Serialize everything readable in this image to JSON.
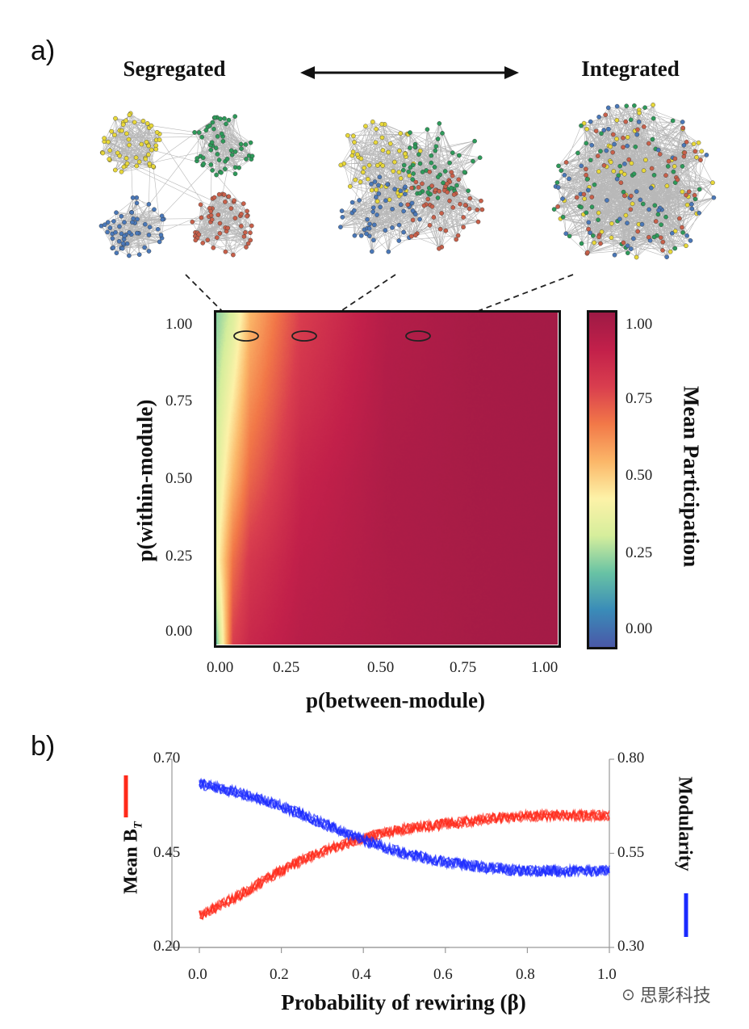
{
  "panel_a": {
    "label": "a)",
    "left_title": "Segregated",
    "right_title": "Integrated",
    "module_colors": [
      "#e8d83a",
      "#2e9a5a",
      "#4a78b8",
      "#c8604a"
    ],
    "network_states": [
      "segregated",
      "intermediate",
      "integrated"
    ]
  },
  "panel_b": {
    "label": "b)"
  },
  "watermark": "思影科技",
  "chart_data": [
    {
      "type": "heatmap",
      "xlabel": "p(between-module)",
      "ylabel": "p(within-module)",
      "x_ticks": [
        "0.00",
        "0.25",
        "0.50",
        "0.75",
        "1.00"
      ],
      "y_ticks": [
        "1.00",
        "0.75",
        "0.50",
        "0.25",
        "0.00"
      ],
      "xlim": [
        0,
        1
      ],
      "ylim": [
        0,
        1
      ],
      "colorbar": {
        "label": "Mean Participation",
        "ticks": [
          "1.00",
          "0.75",
          "0.50",
          "0.25",
          "0.00"
        ],
        "range": [
          0,
          1
        ],
        "colormap": [
          "#4a58a8",
          "#3a8cb8",
          "#69c3a4",
          "#d6ee9c",
          "#fdf2a8",
          "#fbb668",
          "#f27848",
          "#d93e4e",
          "#c2204a",
          "#9e1a45"
        ]
      },
      "grid_x": [
        0,
        0.05,
        0.1,
        0.25,
        0.5,
        0.75,
        1.0
      ],
      "grid_y": [
        1.0,
        0.75,
        0.5,
        0.25,
        0.0
      ],
      "values": [
        [
          0.25,
          0.35,
          0.55,
          0.78,
          0.93,
          0.97,
          0.98
        ],
        [
          0.3,
          0.45,
          0.62,
          0.82,
          0.94,
          0.97,
          0.98
        ],
        [
          0.35,
          0.55,
          0.7,
          0.87,
          0.95,
          0.97,
          0.98
        ],
        [
          0.4,
          0.68,
          0.8,
          0.9,
          0.95,
          0.97,
          0.98
        ],
        [
          0.2,
          0.78,
          0.86,
          0.92,
          0.95,
          0.97,
          0.98
        ]
      ],
      "highlighted_points": [
        {
          "x": 0.05,
          "y": 0.95,
          "links_to": "segregated"
        },
        {
          "x": 0.22,
          "y": 0.95,
          "links_to": "intermediate"
        },
        {
          "x": 0.57,
          "y": 0.95,
          "links_to": "integrated"
        }
      ]
    },
    {
      "type": "line",
      "xlabel": "Probability of rewiring (β)",
      "ylabel_left": "Mean B",
      "ylabel_left_subscript": "T",
      "ylabel_right": "Modularity",
      "xlim": [
        0,
        1
      ],
      "ylim_left": [
        0.2,
        0.7
      ],
      "ylim_right": [
        0.3,
        0.8
      ],
      "x_ticks": [
        "0.0",
        "0.2",
        "0.4",
        "0.6",
        "0.8",
        "1.0"
      ],
      "y_ticks_left": [
        "0.70",
        "0.45",
        "0.20"
      ],
      "y_ticks_right": [
        "0.80",
        "0.55",
        "0.30"
      ],
      "x": [
        0.0,
        0.1,
        0.2,
        0.3,
        0.4,
        0.5,
        0.6,
        0.7,
        0.8,
        0.9,
        1.0
      ],
      "series": [
        {
          "axis": "left",
          "color": "#ff2a1a",
          "values": [
            0.284,
            0.34,
            0.405,
            0.455,
            0.49,
            0.515,
            0.528,
            0.54,
            0.55,
            0.55,
            0.55
          ]
        },
        {
          "axis": "right",
          "color": "#1a2aff",
          "values": [
            0.735,
            0.71,
            0.675,
            0.63,
            0.585,
            0.55,
            0.527,
            0.512,
            0.503,
            0.503,
            0.505
          ]
        }
      ]
    }
  ]
}
